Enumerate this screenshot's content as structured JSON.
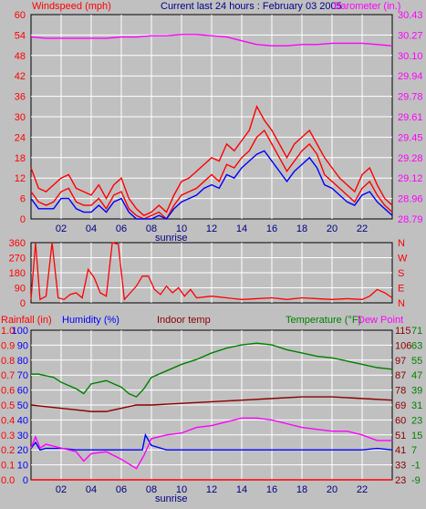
{
  "colors": {
    "background": "#c0c0c0",
    "wind_speed": "#ff0000",
    "wind_dir_series": "#0000ff",
    "barometer": "#ff00ff",
    "gust": "#ff0000",
    "rainfall": "#ff0000",
    "humidity": "#0000ff",
    "indoor_temp": "#8b0000",
    "temperature": "#008000",
    "dew_point": "#ff00ff",
    "gridline": "#ffffff"
  },
  "chart_data": [
    {
      "type": "line",
      "panel": "wind-barometer",
      "title": "Current last 24 hours : February 03 2005",
      "left_axis_label": "Windspeed (mph)",
      "right_axis_label": "Barometer (in.)",
      "left_ticks": [
        "0",
        "6",
        "12",
        "18",
        "24",
        "30",
        "36",
        "42",
        "48",
        "54",
        "60"
      ],
      "right_ticks": [
        "28.79",
        "28.96",
        "29.12",
        "29.28",
        "29.45",
        "29.61",
        "29.78",
        "29.94",
        "30.10",
        "30.27",
        "30.43"
      ],
      "x_ticks": [
        "02",
        "04",
        "06",
        "08",
        "10",
        "12",
        "14",
        "16",
        "18",
        "20",
        "22"
      ],
      "x_range": [
        0,
        24
      ],
      "ylim": [
        0,
        60
      ],
      "sunrise_label": "sunrise",
      "series": [
        {
          "key": "windspeed",
          "x": [
            0,
            0.5,
            1,
            1.5,
            2,
            2.5,
            3,
            3.5,
            4,
            4.5,
            5,
            5.5,
            6,
            6.5,
            7,
            7.5,
            8,
            8.5,
            9,
            9.5,
            10,
            10.5,
            11,
            11.5,
            12,
            12.5,
            13,
            13.5,
            14,
            14.5,
            15,
            15.5,
            16,
            16.5,
            17,
            17.5,
            18,
            18.5,
            19,
            19.5,
            20,
            20.5,
            21,
            21.5,
            22,
            22.5,
            23,
            23.5,
            24
          ],
          "y": [
            8,
            5,
            4,
            5,
            8,
            9,
            5,
            4,
            4,
            6,
            3,
            7,
            8,
            3,
            1,
            0,
            1,
            2,
            0,
            4,
            7,
            8,
            9,
            11,
            13,
            11,
            16,
            15,
            18,
            20,
            24,
            26,
            22,
            18,
            14,
            17,
            20,
            22,
            19,
            13,
            11,
            9,
            7,
            5,
            9,
            11,
            7,
            4,
            2
          ]
        },
        {
          "key": "gust",
          "x": [
            0,
            0.5,
            1,
            1.5,
            2,
            2.5,
            3,
            3.5,
            4,
            4.5,
            5,
            5.5,
            6,
            6.5,
            7,
            7.5,
            8,
            8.5,
            9,
            9.5,
            10,
            10.5,
            11,
            11.5,
            12,
            12.5,
            13,
            13.5,
            14,
            14.5,
            15,
            15.5,
            16,
            16.5,
            17,
            17.5,
            18,
            18.5,
            19,
            19.5,
            20,
            20.5,
            21,
            21.5,
            22,
            22.5,
            23,
            23.5,
            24
          ],
          "y": [
            15,
            9,
            8,
            10,
            12,
            13,
            9,
            8,
            7,
            10,
            6,
            10,
            12,
            6,
            3,
            1,
            2,
            4,
            2,
            7,
            11,
            12,
            14,
            16,
            18,
            17,
            22,
            20,
            23,
            26,
            33,
            29,
            26,
            22,
            18,
            22,
            24,
            26,
            22,
            18,
            15,
            12,
            10,
            8,
            13,
            15,
            10,
            6,
            4
          ]
        },
        {
          "key": "wind_avg_blue",
          "x": [
            0,
            0.5,
            1,
            1.5,
            2,
            2.5,
            3,
            3.5,
            4,
            4.5,
            5,
            5.5,
            6,
            6.5,
            7,
            7.5,
            8,
            8.5,
            9,
            9.5,
            10,
            10.5,
            11,
            11.5,
            12,
            12.5,
            13,
            13.5,
            14,
            14.5,
            15,
            15.5,
            16,
            16.5,
            17,
            17.5,
            18,
            18.5,
            19,
            19.5,
            20,
            20.5,
            21,
            21.5,
            22,
            22.5,
            23,
            23.5,
            24
          ],
          "y": [
            6,
            3,
            3,
            3,
            6,
            6,
            3,
            2,
            2,
            4,
            2,
            5,
            6,
            2,
            0,
            0,
            0,
            1,
            0,
            3,
            5,
            6,
            7,
            9,
            10,
            9,
            13,
            12,
            15,
            17,
            19,
            20,
            17,
            14,
            11,
            14,
            16,
            18,
            15,
            10,
            9,
            7,
            5,
            4,
            7,
            8,
            5,
            3,
            1
          ]
        },
        {
          "key": "barometer",
          "unit_range": [
            28.79,
            30.43
          ],
          "x": [
            0,
            1,
            2,
            3,
            4,
            5,
            6,
            7,
            8,
            9,
            10,
            11,
            12,
            13,
            14,
            15,
            16,
            17,
            18,
            19,
            20,
            21,
            22,
            23,
            24
          ],
          "y": [
            30.25,
            30.24,
            30.24,
            30.24,
            30.24,
            30.24,
            30.25,
            30.25,
            30.26,
            30.26,
            30.27,
            30.27,
            30.26,
            30.25,
            30.22,
            30.19,
            30.18,
            30.18,
            30.19,
            30.19,
            30.2,
            30.2,
            30.2,
            30.19,
            30.18
          ]
        }
      ]
    },
    {
      "type": "line",
      "panel": "wind-direction",
      "left_ticks": [
        "0",
        "90",
        "180",
        "270",
        "360"
      ],
      "right_ticks": [
        "N",
        "E",
        "S",
        "W",
        "N"
      ],
      "ylim": [
        0,
        360
      ],
      "series": [
        {
          "key": "wind_direction",
          "x": [
            0,
            0.3,
            0.6,
            1,
            1.4,
            1.8,
            2.2,
            2.6,
            3,
            3.4,
            3.8,
            4.2,
            4.6,
            5,
            5.4,
            5.8,
            6.2,
            6.6,
            7,
            7.4,
            7.8,
            8.2,
            8.6,
            9,
            9.4,
            9.8,
            10.2,
            10.6,
            11,
            12,
            13,
            14,
            15,
            16,
            17,
            18,
            19,
            20,
            21,
            22,
            22.5,
            23,
            23.5,
            24
          ],
          "y": [
            20,
            360,
            20,
            40,
            360,
            30,
            20,
            50,
            60,
            30,
            200,
            150,
            60,
            40,
            360,
            350,
            20,
            60,
            100,
            160,
            160,
            80,
            50,
            100,
            60,
            90,
            40,
            80,
            30,
            40,
            30,
            20,
            25,
            30,
            20,
            30,
            25,
            20,
            25,
            20,
            40,
            80,
            60,
            30
          ]
        }
      ]
    },
    {
      "type": "line",
      "panel": "temp-humidity",
      "labels": {
        "rainfall": "Rainfall (in)",
        "humidity": "Humidity (%)",
        "indoor": "Indoor temp",
        "temperature": "Temperature (°F)",
        "dewpoint": "Dew Point"
      },
      "left_ticks_rain": [
        "0.0",
        "0.1",
        "0.2",
        "0.3",
        "0.4",
        "0.5",
        "0.6",
        "0.7",
        "0.8",
        "0.9",
        "1.0"
      ],
      "left_ticks_hum": [
        "0",
        "10",
        "20",
        "30",
        "40",
        "50",
        "60",
        "70",
        "80",
        "90",
        "100"
      ],
      "right_ticks_temp": [
        "23",
        "33",
        "41",
        "51",
        "60",
        "69",
        "78",
        "87",
        "97",
        "106",
        "115"
      ],
      "right_ticks_dew": [
        "-9",
        "-1",
        "7",
        "15",
        "23",
        "31",
        "39",
        "47",
        "55",
        "63",
        "71"
      ],
      "x_ticks": [
        "02",
        "04",
        "06",
        "08",
        "10",
        "12",
        "14",
        "16",
        "18",
        "20",
        "22"
      ],
      "sunrise_label": "sunrise",
      "series": [
        {
          "key": "rainfall",
          "x": [
            0,
            24
          ],
          "y": [
            0.0,
            0.0
          ]
        },
        {
          "key": "humidity",
          "x": [
            0,
            0.3,
            0.6,
            1,
            2,
            3,
            4,
            5,
            6,
            7,
            7.4,
            7.6,
            8,
            9,
            10,
            12,
            14,
            16,
            18,
            20,
            22,
            23,
            24
          ],
          "y": [
            21,
            25,
            20,
            21,
            21,
            20,
            20,
            20,
            20,
            20,
            20,
            30,
            23,
            20,
            20,
            20,
            20,
            20,
            20,
            20,
            20,
            21,
            20
          ]
        },
        {
          "key": "indoor_temp",
          "x": [
            0,
            1,
            2,
            3,
            4,
            5,
            6,
            7,
            8,
            10,
            12,
            14,
            16,
            18,
            20,
            22,
            24
          ],
          "y": [
            69,
            68,
            67,
            66,
            65,
            65,
            67,
            69,
            69,
            70,
            71,
            72,
            73,
            74,
            74,
            73,
            72
          ]
        },
        {
          "key": "temperature",
          "x": [
            0,
            0.5,
            1,
            1.5,
            2,
            2.5,
            3,
            3.5,
            4,
            5,
            6,
            6.5,
            7,
            7.5,
            8,
            9,
            10,
            11,
            12,
            13,
            14,
            15,
            16,
            17,
            18,
            19,
            20,
            21,
            22,
            23,
            24
          ],
          "y": [
            88,
            88,
            87,
            86,
            83,
            81,
            79,
            76,
            82,
            84,
            80,
            76,
            74,
            79,
            86,
            90,
            94,
            97,
            101,
            104,
            106,
            107,
            106,
            103,
            101,
            99,
            98,
            96,
            94,
            92,
            91
          ]
        },
        {
          "key": "dew_point",
          "x": [
            0,
            0.3,
            0.6,
            1,
            2,
            3,
            3.5,
            4,
            5,
            6,
            7,
            7.5,
            8,
            9,
            10,
            11,
            12,
            13,
            14,
            15,
            16,
            17,
            18,
            19,
            20,
            21,
            22,
            23,
            24
          ],
          "y": [
            8,
            14,
            8,
            10,
            8,
            6,
            1,
            5,
            6,
            2,
            -3,
            4,
            13,
            15,
            16,
            19,
            20,
            22,
            24,
            24,
            23,
            21,
            19,
            18,
            17,
            17,
            15,
            12,
            12
          ]
        }
      ]
    }
  ]
}
